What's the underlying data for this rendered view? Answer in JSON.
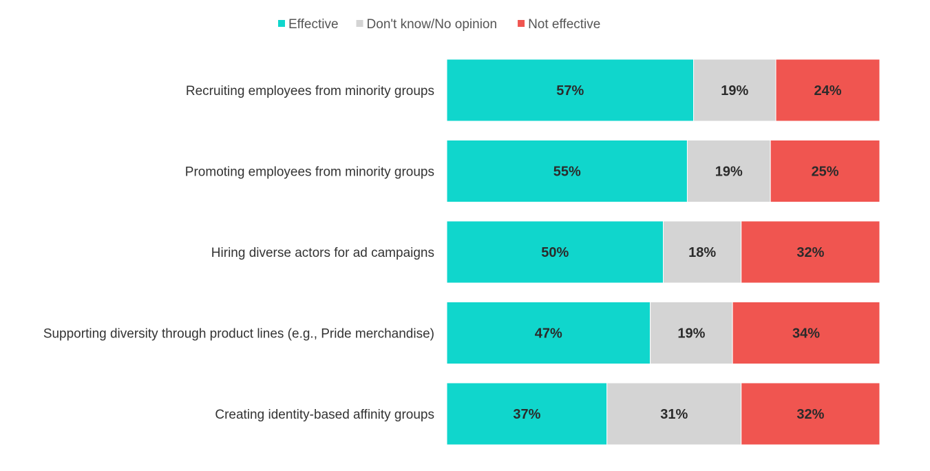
{
  "chart_data": {
    "type": "bar",
    "orientation": "horizontal",
    "stacked": true,
    "value_format": "percent",
    "categories": [
      "Recruiting employees from minority groups",
      "Promoting employees from minority groups",
      "Hiring diverse actors for ad campaigns",
      "Supporting diversity through product lines (e.g., Pride merchandise)",
      "Creating identity-based affinity groups"
    ],
    "series": [
      {
        "name": "Effective",
        "color": "#10d6cc",
        "values": [
          57,
          55,
          50,
          47,
          37
        ]
      },
      {
        "name": "Don't know/No opinion",
        "color": "#d4d4d4",
        "values": [
          19,
          19,
          18,
          19,
          31
        ]
      },
      {
        "name": "Not effective",
        "color": "#f05550",
        "values": [
          24,
          25,
          32,
          34,
          32
        ]
      }
    ],
    "legend_position": "top-center",
    "grid": false,
    "title": "",
    "xlabel": "",
    "ylabel": ""
  }
}
